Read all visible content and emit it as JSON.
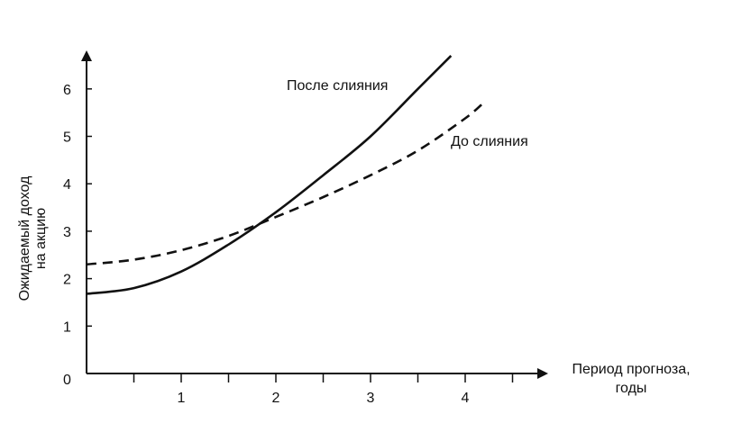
{
  "chart_data": {
    "type": "line",
    "title": "",
    "xlabel": "Период прогноза, годы",
    "xlabel_lines": [
      "Период прогноза,",
      "годы"
    ],
    "ylabel": "Ожидаемый доход на акцию",
    "ylabel_lines": [
      "Ожидаемый доход",
      "на акцию"
    ],
    "xlim": [
      0,
      4.8
    ],
    "ylim": [
      0,
      6.7
    ],
    "x_ticks": [
      0,
      0.5,
      1,
      1.5,
      2,
      2.5,
      3,
      3.5,
      4,
      4.5
    ],
    "x_tick_labels": [
      "",
      "",
      "1",
      "",
      "2",
      "",
      "3",
      "",
      "4",
      ""
    ],
    "y_ticks": [
      0,
      1,
      2,
      3,
      4,
      5,
      6
    ],
    "y_tick_labels": [
      "0",
      "1",
      "2",
      "3",
      "4",
      "5",
      "6"
    ],
    "grid": false,
    "legend": "none",
    "series": [
      {
        "name": "После слияния",
        "style": "solid",
        "color": "#111111",
        "x": [
          0,
          0.5,
          1.0,
          1.5,
          2.0,
          2.5,
          3.0,
          3.5,
          3.85
        ],
        "y": [
          1.68,
          1.8,
          2.15,
          2.72,
          3.4,
          4.18,
          5.0,
          6.0,
          6.7
        ]
      },
      {
        "name": "До слияния",
        "style": "dashed",
        "color": "#111111",
        "x": [
          0,
          0.5,
          1.0,
          1.5,
          2.0,
          2.5,
          3.0,
          3.5,
          4.0,
          4.2
        ],
        "y": [
          2.3,
          2.4,
          2.6,
          2.9,
          3.3,
          3.72,
          4.18,
          4.7,
          5.38,
          5.72
        ]
      }
    ]
  }
}
